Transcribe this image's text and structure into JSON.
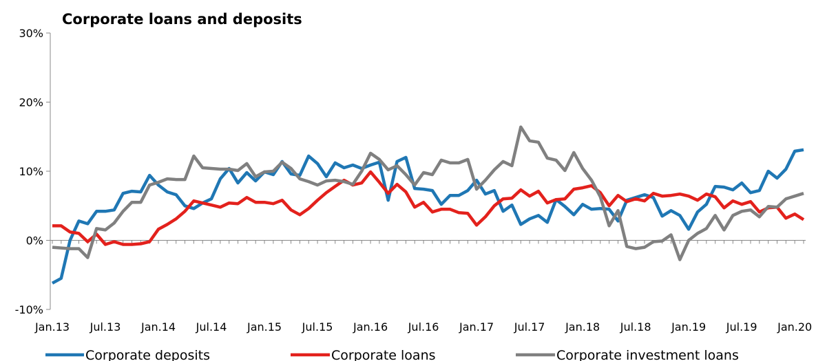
{
  "chart_data": {
    "type": "line",
    "title": "Corporate loans and deposits",
    "xlabel": "",
    "ylabel": "",
    "ylim": [
      -10,
      30
    ],
    "y_ticks": [
      -10,
      0,
      10,
      20,
      30
    ],
    "y_tick_labels": [
      "-10%",
      "0%",
      "10%",
      "20%",
      "30%"
    ],
    "x_tick_labels": [
      "Jan.13",
      "Jul.13",
      "Jan.14",
      "Jul.14",
      "Jan.15",
      "Jul.15",
      "Jan.16",
      "Jul.16",
      "Jan.17",
      "Jul.17",
      "Jan.18",
      "Jul.18",
      "Jan.19",
      "Jul.19",
      "Jan.20"
    ],
    "x_start": "Jan.13",
    "x_end": "Feb.20",
    "frequency": "monthly",
    "grid": false,
    "legend_position": "bottom",
    "colors": {
      "Corporate deposits": "#1f77b4",
      "Corporate loans": "#e3211c",
      "Corporate investment loans": "#808080"
    },
    "series": [
      {
        "name": "Corporate deposits",
        "values": [
          -6.2,
          -5.5,
          0.0,
          2.8,
          2.4,
          4.2,
          4.2,
          4.4,
          6.8,
          7.1,
          7.0,
          9.4,
          8.0,
          7.0,
          6.6,
          5.0,
          4.6,
          5.4,
          6.0,
          8.9,
          10.4,
          8.3,
          9.8,
          8.6,
          9.9,
          9.5,
          11.4,
          9.6,
          9.4,
          12.2,
          11.1,
          9.2,
          11.2,
          10.5,
          10.9,
          10.4,
          10.9,
          11.3,
          5.8,
          11.4,
          12.0,
          7.5,
          7.4,
          7.2,
          5.2,
          6.5,
          6.5,
          7.2,
          8.7,
          6.7,
          7.2,
          4.2,
          5.1,
          2.3,
          3.1,
          3.6,
          2.6,
          5.9,
          4.9,
          3.7,
          5.2,
          4.5,
          4.6,
          4.5,
          2.8,
          5.8,
          6.2,
          6.6,
          6.2,
          3.5,
          4.3,
          3.6,
          1.6,
          4.1,
          5.2,
          7.8,
          7.7,
          7.3,
          8.3,
          6.9,
          7.2,
          10.0,
          9.0,
          10.3,
          12.9,
          13.1
        ]
      },
      {
        "name": "Corporate loans",
        "values": [
          2.1,
          2.1,
          1.2,
          1.0,
          -0.2,
          0.9,
          -0.6,
          -0.2,
          -0.6,
          -0.6,
          -0.5,
          -0.2,
          1.6,
          2.3,
          3.1,
          4.2,
          5.7,
          5.4,
          5.1,
          4.8,
          5.4,
          5.3,
          6.2,
          5.5,
          5.5,
          5.3,
          5.8,
          4.4,
          3.7,
          4.6,
          5.8,
          6.9,
          7.8,
          8.7,
          8.0,
          8.3,
          9.9,
          8.4,
          6.8,
          8.1,
          7.0,
          4.8,
          5.5,
          4.1,
          4.5,
          4.5,
          4.0,
          3.9,
          2.2,
          3.4,
          5.0,
          6.0,
          6.1,
          7.3,
          6.4,
          7.1,
          5.4,
          5.9,
          6.0,
          7.4,
          7.6,
          7.9,
          6.9,
          5.0,
          6.5,
          5.6,
          6.0,
          5.7,
          6.8,
          6.4,
          6.5,
          6.7,
          6.4,
          5.8,
          6.7,
          6.3,
          4.7,
          5.7,
          5.2,
          5.6,
          4.1,
          4.7,
          4.8,
          3.2,
          3.8,
          3.0
        ]
      },
      {
        "name": "Corporate investment loans",
        "values": [
          -1.0,
          -1.1,
          -1.2,
          -1.2,
          -2.5,
          1.7,
          1.5,
          2.5,
          4.2,
          5.5,
          5.5,
          8.0,
          8.4,
          8.9,
          8.8,
          8.8,
          12.2,
          10.5,
          10.4,
          10.3,
          10.3,
          10.1,
          11.1,
          9.2,
          9.9,
          10.0,
          11.3,
          10.4,
          8.9,
          8.5,
          8.0,
          8.6,
          8.7,
          8.5,
          8.1,
          10.0,
          12.6,
          11.7,
          10.2,
          10.8,
          9.5,
          8.0,
          9.8,
          9.5,
          11.6,
          11.2,
          11.2,
          11.7,
          7.4,
          8.7,
          10.2,
          11.4,
          10.8,
          16.4,
          14.4,
          14.2,
          11.9,
          11.6,
          10.1,
          12.7,
          10.4,
          8.7,
          6.3,
          2.1,
          4.3,
          -0.9,
          -1.2,
          -1.0,
          -0.2,
          -0.1,
          0.8,
          -2.8,
          0.0,
          1.0,
          1.7,
          3.6,
          1.5,
          3.6,
          4.2,
          4.4,
          3.4,
          4.9,
          4.8,
          6.0,
          6.4,
          6.8
        ]
      }
    ]
  }
}
